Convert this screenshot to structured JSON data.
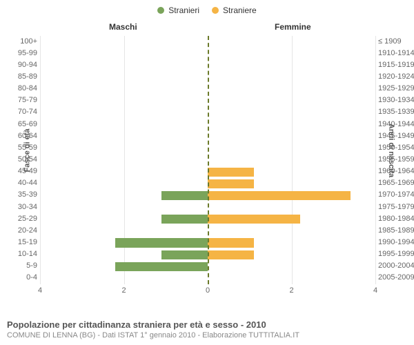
{
  "legend": {
    "male": {
      "label": "Stranieri",
      "color": "#7aa45a"
    },
    "female": {
      "label": "Straniere",
      "color": "#f5b445"
    }
  },
  "headers": {
    "left": "Maschi",
    "right": "Femmine"
  },
  "axis_titles": {
    "left": "Fasce di età",
    "right": "Anni di nascita"
  },
  "x_ticks": [
    0,
    2,
    4
  ],
  "xmax": 4,
  "categories": [
    {
      "age": "100+",
      "birth": "≤ 1909",
      "m": 0,
      "f": 0
    },
    {
      "age": "95-99",
      "birth": "1910-1914",
      "m": 0,
      "f": 0
    },
    {
      "age": "90-94",
      "birth": "1915-1919",
      "m": 0,
      "f": 0
    },
    {
      "age": "85-89",
      "birth": "1920-1924",
      "m": 0,
      "f": 0
    },
    {
      "age": "80-84",
      "birth": "1925-1929",
      "m": 0,
      "f": 0
    },
    {
      "age": "75-79",
      "birth": "1930-1934",
      "m": 0,
      "f": 0
    },
    {
      "age": "70-74",
      "birth": "1935-1939",
      "m": 0,
      "f": 0
    },
    {
      "age": "65-69",
      "birth": "1940-1944",
      "m": 0,
      "f": 0
    },
    {
      "age": "60-64",
      "birth": "1945-1949",
      "m": 0,
      "f": 0
    },
    {
      "age": "55-59",
      "birth": "1950-1954",
      "m": 0,
      "f": 0
    },
    {
      "age": "50-54",
      "birth": "1955-1959",
      "m": 0,
      "f": 0
    },
    {
      "age": "45-49",
      "birth": "1960-1964",
      "m": 0,
      "f": 1.1
    },
    {
      "age": "40-44",
      "birth": "1965-1969",
      "m": 0,
      "f": 1.1
    },
    {
      "age": "35-39",
      "birth": "1970-1974",
      "m": 1.1,
      "f": 3.4
    },
    {
      "age": "30-34",
      "birth": "1975-1979",
      "m": 0,
      "f": 0
    },
    {
      "age": "25-29",
      "birth": "1980-1984",
      "m": 1.1,
      "f": 2.2
    },
    {
      "age": "20-24",
      "birth": "1985-1989",
      "m": 0,
      "f": 0
    },
    {
      "age": "15-19",
      "birth": "1990-1994",
      "m": 2.2,
      "f": 1.1
    },
    {
      "age": "10-14",
      "birth": "1995-1999",
      "m": 1.1,
      "f": 1.1
    },
    {
      "age": "5-9",
      "birth": "2000-2004",
      "m": 2.2,
      "f": 0
    },
    {
      "age": "0-4",
      "birth": "2005-2009",
      "m": 0,
      "f": 0
    }
  ],
  "style": {
    "grid_color": "#e5e5e5",
    "divider_color": "#6b7a2a",
    "bg": "#ffffff",
    "label_fontsize": 11,
    "title_fontsize": 13
  },
  "footer": {
    "title": "Popolazione per cittadinanza straniera per età e sesso - 2010",
    "sub": "COMUNE DI LENNA (BG) - Dati ISTAT 1° gennaio 2010 - Elaborazione TUTTITALIA.IT"
  }
}
